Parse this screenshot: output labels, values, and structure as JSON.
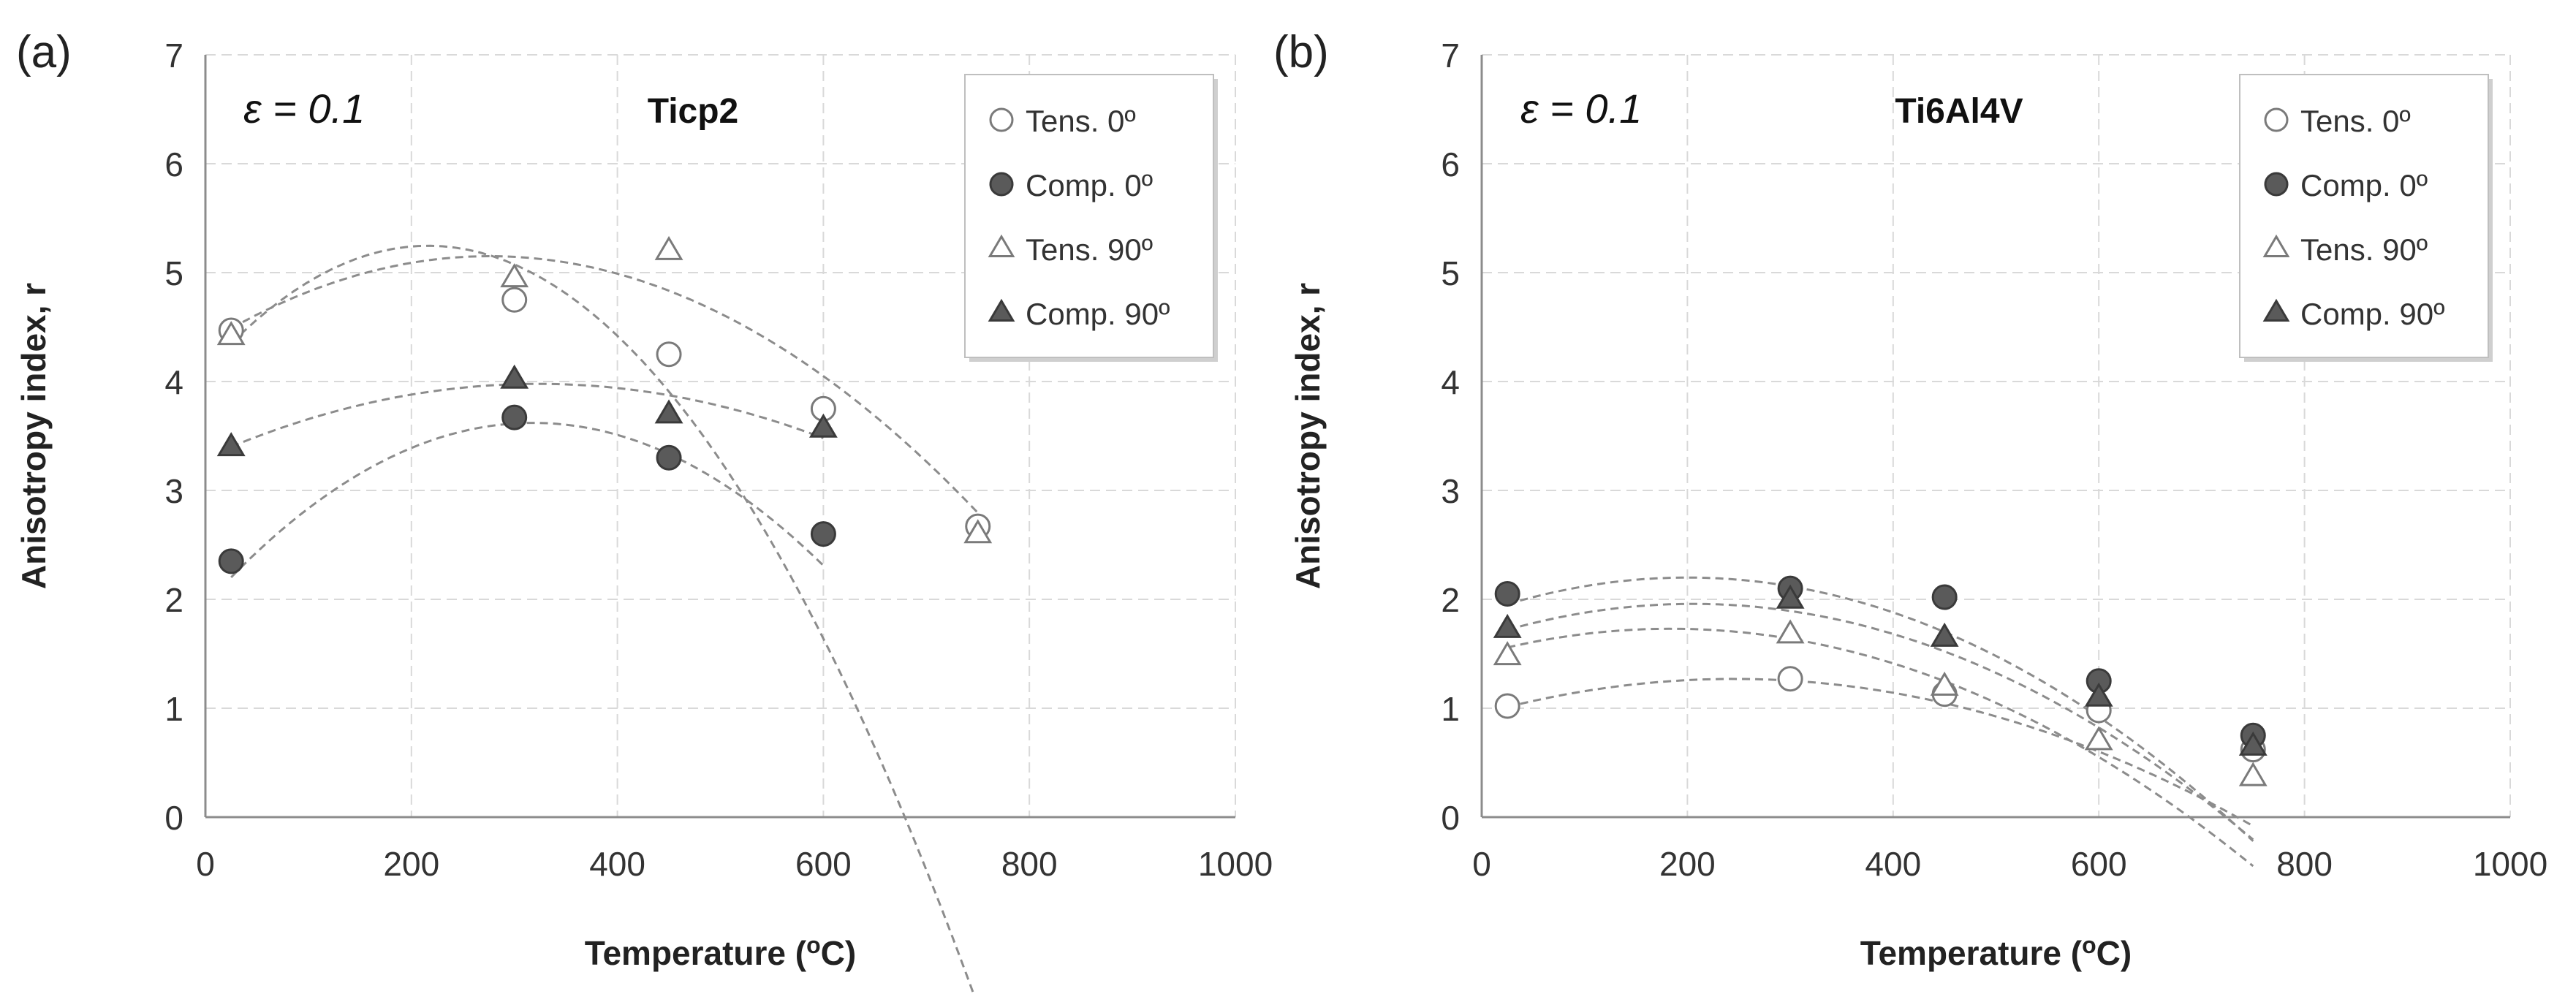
{
  "chart_data": [
    {
      "type": "scatter",
      "panel_label": "(a)",
      "title": "Ticp2",
      "strain_label": "ε = 0.1",
      "xlabel": "Temperature (ºC)",
      "xlabel_parts": [
        "Temperature (",
        "o",
        "C)"
      ],
      "ylabel": "Anisotropy index, r",
      "xlim": [
        0,
        1000
      ],
      "ylim": [
        0,
        7
      ],
      "xticks": [
        0,
        200,
        400,
        600,
        800,
        1000
      ],
      "yticks": [
        0,
        1,
        2,
        3,
        4,
        5,
        6,
        7
      ],
      "xtick_labels": [
        "0",
        "200",
        "400",
        "600",
        "800",
        "1000"
      ],
      "ytick_labels": [
        "0",
        "1",
        "2",
        "3",
        "4",
        "5",
        "6",
        "7"
      ],
      "grid": true,
      "legend_position": "top-right",
      "series": [
        {
          "name": "Tens. 0º",
          "marker": "circle",
          "filled": false,
          "x": [
            25,
            300,
            450,
            600,
            750
          ],
          "y": [
            4.47,
            4.75,
            4.25,
            3.75,
            2.67
          ],
          "trend": [
            -2.45e-05,
            0.0106,
            4.1
          ]
        },
        {
          "name": "Comp. 0º",
          "marker": "circle",
          "filled": true,
          "x": [
            25,
            300,
            450,
            600
          ],
          "y": [
            2.35,
            3.67,
            3.3,
            2.6
          ],
          "trend": [
            -1.65e-05,
            0.0105,
            1.95
          ]
        },
        {
          "name": "Tens. 90º",
          "marker": "triangle",
          "filled": false,
          "x": [
            25,
            300,
            450,
            750
          ],
          "y": [
            4.42,
            4.95,
            5.2,
            2.6
          ],
          "trend": [
            -1.05e-05,
            0.0058,
            4.35
          ]
        },
        {
          "name": "Comp. 90º",
          "marker": "triangle",
          "filled": true,
          "x": [
            25,
            300,
            450,
            600
          ],
          "y": [
            3.4,
            4.02,
            3.7,
            3.57
          ],
          "trend": [
            -6.5e-06,
            0.0042,
            3.3
          ]
        }
      ]
    },
    {
      "type": "scatter",
      "panel_label": "(b)",
      "title": "Ti6Al4V",
      "strain_label": "ε = 0.1",
      "xlabel": "Temperature (ºC)",
      "xlabel_parts": [
        "Temperature (",
        "o",
        "C)"
      ],
      "ylabel": "Anisotropy index, r",
      "xlim": [
        0,
        1000
      ],
      "ylim": [
        0,
        7
      ],
      "xticks": [
        0,
        200,
        400,
        600,
        800,
        1000
      ],
      "yticks": [
        0,
        1,
        2,
        3,
        4,
        5,
        6,
        7
      ],
      "xtick_labels": [
        "0",
        "200",
        "400",
        "600",
        "800",
        "1000"
      ],
      "ytick_labels": [
        "0",
        "1",
        "2",
        "3",
        "4",
        "5",
        "6",
        "7"
      ],
      "grid": true,
      "legend_position": "top-right",
      "series": [
        {
          "name": "Tens. 0º",
          "marker": "circle",
          "filled": false,
          "x": [
            25,
            300,
            450,
            600,
            750
          ],
          "y": [
            1.02,
            1.27,
            1.13,
            0.98,
            0.62
          ],
          "trend": [
            -5.3e-06,
            0.0026,
            0.95
          ]
        },
        {
          "name": "Comp. 0º",
          "marker": "circle",
          "filled": true,
          "x": [
            25,
            300,
            450,
            600,
            750
          ],
          "y": [
            2.05,
            2.1,
            2.02,
            1.25,
            0.75
          ],
          "trend": [
            -8e-06,
            0.0032,
            1.88
          ]
        },
        {
          "name": "Tens. 90º",
          "marker": "triangle",
          "filled": false,
          "x": [
            25,
            300,
            450,
            600,
            750
          ],
          "y": [
            1.48,
            1.68,
            1.2,
            0.7,
            0.37
          ],
          "trend": [
            -6.8e-06,
            0.0025,
            1.5
          ]
        },
        {
          "name": "Comp. 90º",
          "marker": "triangle",
          "filled": true,
          "x": [
            25,
            300,
            450,
            600,
            750
          ],
          "y": [
            1.73,
            2.0,
            1.65,
            1.1,
            0.65
          ],
          "trend": [
            -7.3e-06,
            0.003,
            1.65
          ]
        }
      ]
    }
  ]
}
